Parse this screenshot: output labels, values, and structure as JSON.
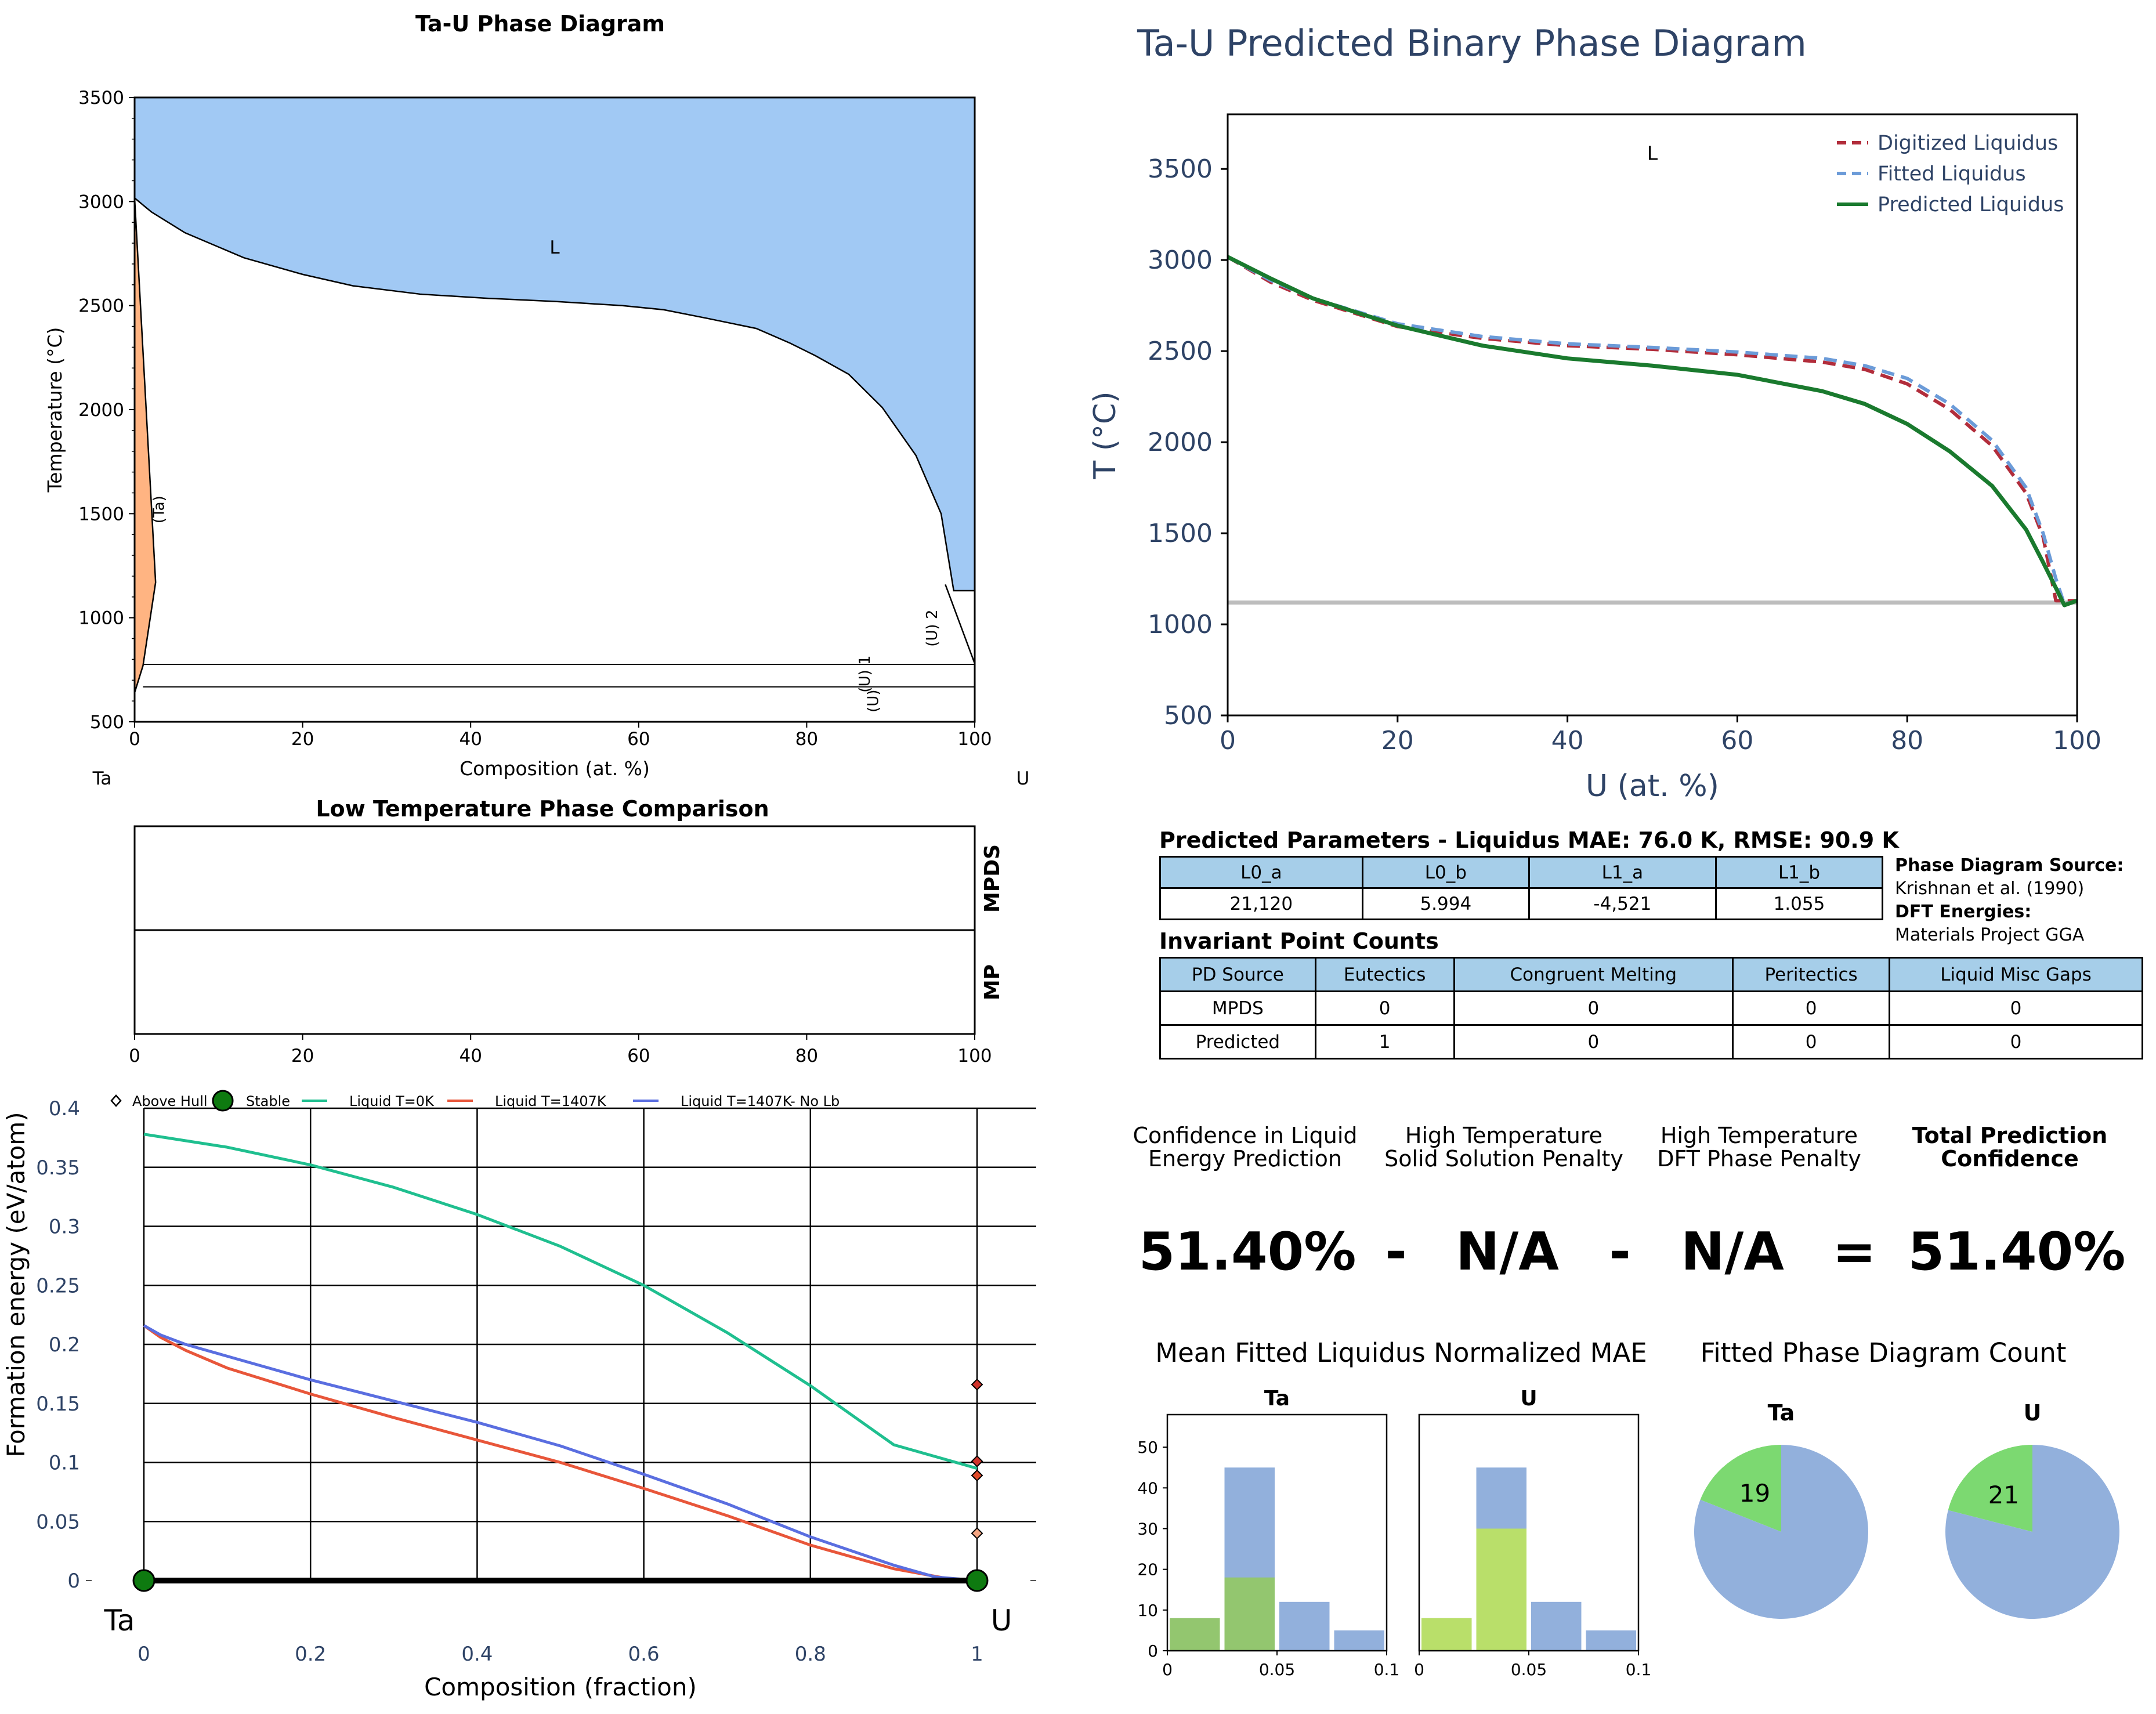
{
  "chart_data": [
    {
      "id": "pd",
      "type": "area",
      "title": "Ta-U Phase Diagram",
      "xlabel": "Composition (at. %)",
      "ylabel": "Temperature (°C)",
      "xlim": [
        0,
        100
      ],
      "ylim": [
        500,
        3500
      ],
      "xticks": [
        0,
        20,
        40,
        60,
        80,
        100
      ],
      "yticks": [
        500,
        1000,
        1500,
        2000,
        2500,
        3000,
        3500
      ],
      "element_left": "Ta",
      "element_right": "U",
      "liquidus": [
        [
          0,
          3017
        ],
        [
          2,
          2950
        ],
        [
          6,
          2850
        ],
        [
          13,
          2730
        ],
        [
          20,
          2650
        ],
        [
          26,
          2595
        ],
        [
          34,
          2555
        ],
        [
          42,
          2535
        ],
        [
          50,
          2520
        ],
        [
          58,
          2500
        ],
        [
          63,
          2480
        ],
        [
          68,
          2440
        ],
        [
          74,
          2390
        ],
        [
          78,
          2320
        ],
        [
          81,
          2260
        ],
        [
          85,
          2170
        ],
        [
          89,
          2010
        ],
        [
          93,
          1780
        ],
        [
          96,
          1500
        ],
        [
          97.5,
          1130
        ],
        [
          100,
          1130
        ]
      ],
      "ta_solid_solution": [
        [
          0,
          3017
        ],
        [
          2.5,
          1170
        ],
        [
          1,
          770
        ],
        [
          0,
          640
        ]
      ],
      "u2_boundary": [
        [
          96.5,
          1160
        ],
        [
          100,
          780
        ]
      ],
      "invariant_lines": [
        776,
        668
      ],
      "phase_labels": [
        {
          "text": "L",
          "x": 50,
          "y": 2750
        },
        {
          "text": "(Ta)",
          "x": 3.5,
          "y": 1520
        },
        {
          "text": "(U) 1",
          "x": 87.5,
          "y": 730
        },
        {
          "text": "(U)",
          "x": 88.5,
          "y": 600
        },
        {
          "text": "(U) 2",
          "x": 95.5,
          "y": 950
        }
      ],
      "colors": {
        "liquid": "#a1c9f4",
        "solid": "#ffb482"
      }
    },
    {
      "id": "pred",
      "type": "line",
      "title": "Ta-U Predicted Binary Phase Diagram",
      "xlabel": "U (at. %)",
      "ylabel": "T (°C)",
      "xlim": [
        0,
        100
      ],
      "ylim": [
        500,
        3800
      ],
      "xticks": [
        0,
        20,
        40,
        60,
        80,
        100
      ],
      "yticks": [
        500,
        1000,
        1500,
        2000,
        2500,
        3000,
        3500
      ],
      "region_label": {
        "text": "L",
        "x": 50,
        "y": 3550
      },
      "legend_position": "top-right",
      "reference_line": 1120,
      "series": [
        {
          "name": "Digitized Liquidus",
          "color": "#b22d3b",
          "dash": true,
          "points": [
            [
              0,
              3017
            ],
            [
              5,
              2880
            ],
            [
              10,
              2780
            ],
            [
              20,
              2635
            ],
            [
              30,
              2570
            ],
            [
              40,
              2530
            ],
            [
              50,
              2510
            ],
            [
              60,
              2480
            ],
            [
              70,
              2440
            ],
            [
              75,
              2400
            ],
            [
              80,
              2320
            ],
            [
              85,
              2180
            ],
            [
              90,
              1980
            ],
            [
              94,
              1720
            ],
            [
              96,
              1480
            ],
            [
              97.5,
              1130
            ],
            [
              100,
              1130
            ]
          ]
        },
        {
          "name": "Fitted Liquidus",
          "color": "#6b9bd8",
          "dash": true,
          "points": [
            [
              0,
              3017
            ],
            [
              5,
              2890
            ],
            [
              10,
              2790
            ],
            [
              20,
              2650
            ],
            [
              30,
              2580
            ],
            [
              40,
              2540
            ],
            [
              50,
              2520
            ],
            [
              60,
              2495
            ],
            [
              70,
              2460
            ],
            [
              75,
              2420
            ],
            [
              80,
              2350
            ],
            [
              85,
              2210
            ],
            [
              90,
              2010
            ],
            [
              94,
              1750
            ],
            [
              96,
              1500
            ],
            [
              97.5,
              1250
            ],
            [
              98.5,
              1110
            ],
            [
              100,
              1130
            ]
          ]
        },
        {
          "name": "Predicted Liquidus",
          "color": "#1a7a2e",
          "dash": false,
          "points": [
            [
              0,
              3017
            ],
            [
              5,
              2900
            ],
            [
              10,
              2790
            ],
            [
              20,
              2640
            ],
            [
              30,
              2530
            ],
            [
              40,
              2460
            ],
            [
              50,
              2420
            ],
            [
              60,
              2370
            ],
            [
              70,
              2280
            ],
            [
              75,
              2210
            ],
            [
              80,
              2100
            ],
            [
              85,
              1950
            ],
            [
              90,
              1760
            ],
            [
              94,
              1520
            ],
            [
              96,
              1340
            ],
            [
              97.5,
              1200
            ],
            [
              98.5,
              1105
            ],
            [
              100,
              1130
            ]
          ]
        }
      ]
    },
    {
      "id": "low_t",
      "type": "table",
      "title": "Low Temperature Phase Comparison",
      "rows": [
        "MPDS",
        "MP"
      ],
      "xlim": [
        0,
        100
      ],
      "xticks": [
        0,
        20,
        40,
        60,
        80,
        100
      ]
    },
    {
      "id": "hull",
      "type": "line",
      "xlabel": "Composition (fraction)",
      "ylabel": "Formation energy (eV/atom)",
      "xlim": [
        0,
        1
      ],
      "ylim": [
        0,
        0.4
      ],
      "xticks": [
        0,
        0.2,
        0.4,
        0.6,
        0.8,
        1
      ],
      "xtick_labels": [
        "0",
        "0.2",
        "0.4",
        "0.6",
        "0.8",
        "1"
      ],
      "yticks": [
        0,
        0.05,
        0.1,
        0.15,
        0.2,
        0.25,
        0.3,
        0.35,
        0.4
      ],
      "ytick_labels": [
        "0",
        "0.05",
        "0.1",
        "0.15",
        "0.2",
        "0.25",
        "0.3",
        "0.35",
        "0.4"
      ],
      "grid": true,
      "legend_position": "top",
      "element_left": "Ta",
      "element_right": "U",
      "legend": [
        {
          "name": "Above Hull",
          "kind": "diamond"
        },
        {
          "name": "Stable",
          "kind": "circle"
        },
        {
          "name": "Liquid T=0K",
          "kind": "line",
          "color": "#1fbf8f"
        },
        {
          "name": "Liquid T=1407K",
          "kind": "line",
          "color": "#e8563a"
        },
        {
          "name": "Liquid T=1407K- No Lb",
          "kind": "line",
          "color": "#5a6ee0"
        }
      ],
      "series": [
        {
          "name": "Liquid T=0K",
          "color": "#1fbf8f",
          "points": [
            [
              0,
              0.378
            ],
            [
              0.1,
              0.367
            ],
            [
              0.2,
              0.352
            ],
            [
              0.3,
              0.333
            ],
            [
              0.4,
              0.31
            ],
            [
              0.5,
              0.283
            ],
            [
              0.6,
              0.25
            ],
            [
              0.7,
              0.21
            ],
            [
              0.8,
              0.165
            ],
            [
              0.9,
              0.115
            ],
            [
              1,
              0.095
            ]
          ]
        },
        {
          "name": "Liquid T=1407K",
          "color": "#e8563a",
          "points": [
            [
              0,
              0.216
            ],
            [
              0.02,
              0.206
            ],
            [
              0.05,
              0.195
            ],
            [
              0.1,
              0.18
            ],
            [
              0.2,
              0.158
            ],
            [
              0.3,
              0.138
            ],
            [
              0.4,
              0.119
            ],
            [
              0.5,
              0.1
            ],
            [
              0.6,
              0.078
            ],
            [
              0.7,
              0.055
            ],
            [
              0.8,
              0.03
            ],
            [
              0.9,
              0.01
            ],
            [
              0.97,
              0.001
            ],
            [
              1,
              0
            ]
          ]
        },
        {
          "name": "Liquid T=1407K- No Lb",
          "color": "#5a6ee0",
          "points": [
            [
              0,
              0.216
            ],
            [
              0.02,
              0.208
            ],
            [
              0.05,
              0.2
            ],
            [
              0.1,
              0.19
            ],
            [
              0.2,
              0.17
            ],
            [
              0.3,
              0.152
            ],
            [
              0.4,
              0.134
            ],
            [
              0.5,
              0.114
            ],
            [
              0.6,
              0.09
            ],
            [
              0.7,
              0.065
            ],
            [
              0.8,
              0.037
            ],
            [
              0.9,
              0.013
            ],
            [
              0.95,
              0.003
            ],
            [
              1,
              0
            ]
          ]
        }
      ],
      "stable_points": [
        [
          0,
          0
        ],
        [
          1,
          0
        ]
      ],
      "above_hull_points": [
        {
          "x": 1,
          "y": 0.166,
          "color": "#d0342c"
        },
        {
          "x": 1,
          "y": 0.101,
          "color": "#d0342c"
        },
        {
          "x": 1,
          "y": 0.089,
          "color": "#e04a2a"
        },
        {
          "x": 1,
          "y": 0.04,
          "color": "#f4a582"
        },
        {
          "x": 0,
          "y": 0.004,
          "color": "#ffffff"
        }
      ]
    },
    {
      "id": "hist_ta",
      "type": "bar",
      "title": "Ta",
      "bins": [
        [
          0,
          0.025
        ],
        [
          0.025,
          0.05
        ],
        [
          0.05,
          0.075
        ],
        [
          0.075,
          0.1
        ]
      ],
      "series": [
        {
          "name": "all",
          "color": "#92b0dc",
          "values": [
            8,
            45,
            12,
            5
          ]
        },
        {
          "name": "highlight",
          "color": "#93c66f",
          "values": [
            8,
            18,
            0,
            0
          ]
        }
      ],
      "xlim": [
        0,
        0.1
      ],
      "ylim": [
        0,
        58
      ],
      "xticks": [
        0,
        0.05,
        0.1
      ],
      "xtick_labels": [
        "0",
        "0.05",
        "0.1"
      ],
      "yticks": [
        0,
        10,
        20,
        30,
        40,
        50
      ]
    },
    {
      "id": "hist_u",
      "type": "bar",
      "title": "U",
      "bins": [
        [
          0,
          0.025
        ],
        [
          0.025,
          0.05
        ],
        [
          0.05,
          0.075
        ],
        [
          0.075,
          0.1
        ]
      ],
      "series": [
        {
          "name": "all",
          "color": "#92b0dc",
          "values": [
            8,
            45,
            12,
            5
          ]
        },
        {
          "name": "highlight",
          "color": "#b9df6a",
          "values": [
            8,
            30,
            0,
            0
          ]
        }
      ],
      "xlim": [
        0,
        0.1
      ],
      "ylim": [
        0,
        58
      ],
      "xticks": [
        0,
        0.05,
        0.1
      ],
      "xtick_labels": [
        "0",
        "0.05",
        "0.1"
      ]
    },
    {
      "id": "pie_ta",
      "type": "pie",
      "title": "Ta",
      "slices": [
        {
          "value": 19,
          "label": "19",
          "color": "#7cd971"
        },
        {
          "value": 81,
          "label": "",
          "color": "#92b0dc"
        }
      ]
    },
    {
      "id": "pie_u",
      "type": "pie",
      "title": "U",
      "slices": [
        {
          "value": 21,
          "label": "21",
          "color": "#7cd971"
        },
        {
          "value": 79,
          "label": "",
          "color": "#92b0dc"
        }
      ]
    }
  ],
  "params": {
    "title": "Predicted Parameters - Liquidus MAE: 76.0 K, RMSE: 90.9 K",
    "headers": [
      "L0_a",
      "L0_b",
      "L1_a",
      "L1_b"
    ],
    "values": [
      "21,120",
      "5.994",
      "-4,521",
      "1.055"
    ]
  },
  "source": {
    "pd_label": "Phase Diagram Source:",
    "pd_value": "Krishnan et al. (1990)",
    "dft_label": "DFT Energies:",
    "dft_value": "Materials Project GGA"
  },
  "invariants": {
    "title": "Invariant Point Counts",
    "headers": [
      "PD Source",
      "Eutectics",
      "Congruent Melting",
      "Peritectics",
      "Liquid Misc Gaps"
    ],
    "rows": [
      [
        "MPDS",
        "0",
        "0",
        "0",
        "0"
      ],
      [
        "Predicted",
        "1",
        "0",
        "0",
        "0"
      ]
    ]
  },
  "confidence": {
    "h1a": "Confidence in Liquid",
    "h1b": "Energy Prediction",
    "h2a": "High Temperature",
    "h2b": "Solid Solution Penalty",
    "h3a": "High Temperature",
    "h3b": "DFT Phase Penalty",
    "h4a": "Total Prediction",
    "h4b": "Confidence",
    "v1": "51.40%",
    "op1": "-",
    "v2": "N/A",
    "op2": "-",
    "v3": "N/A",
    "op3": "=",
    "v4": "51.40%"
  },
  "hist_title": "Mean Fitted Liquidus Normalized MAE",
  "pie_title": "Fitted Phase Diagram Count"
}
